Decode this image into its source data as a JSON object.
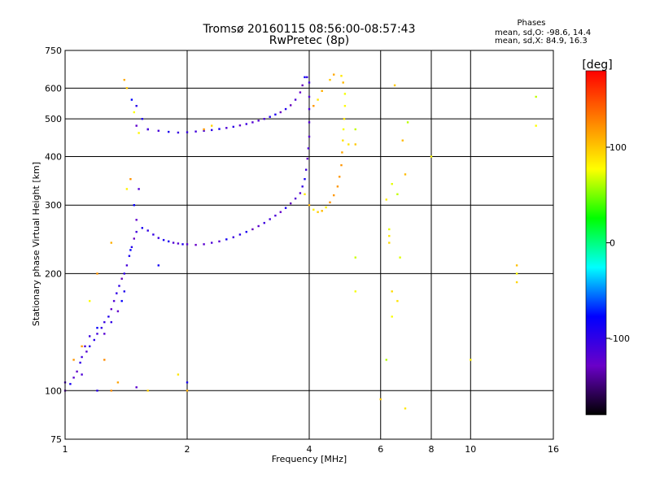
{
  "chart_data": {
    "type": "scatter",
    "title": "Tromsø 20160115 08:56:00-08:57:43",
    "subtitle": "RwPretec (8p)",
    "xlabel": "Frequency [MHz]",
    "ylabel": "Stationary phase Virtual Height [km]",
    "x_scale": "log",
    "y_scale": "log",
    "xlim": [
      1,
      16
    ],
    "ylim": [
      75,
      750
    ],
    "x_ticks": [
      1,
      2,
      4,
      6,
      8,
      10,
      16
    ],
    "y_ticks": [
      75,
      100,
      200,
      300,
      400,
      500,
      600,
      750
    ],
    "grid": true,
    "stats": {
      "heading": "Phases",
      "line_o": "mean, sd,O: -98.6, 14.4",
      "line_x": "mean, sd,X:  84.9, 16.3"
    },
    "colorbar": {
      "label": "[deg]",
      "range": [
        -180,
        180
      ],
      "ticks": [
        100,
        0,
        -100
      ],
      "colors": [
        "#ff0000",
        "#ff8000",
        "#ffff00",
        "#00ff00",
        "#00ffff",
        "#0000ff",
        "#6a00c8",
        "#000000"
      ]
    },
    "series": [
      {
        "points": [
          [
            1.0,
            100
          ],
          [
            1.03,
            104
          ],
          [
            1.05,
            108
          ],
          [
            1.07,
            112
          ],
          [
            1.09,
            118
          ],
          [
            1.1,
            122
          ],
          [
            1.13,
            126
          ],
          [
            1.15,
            130
          ],
          [
            1.18,
            135
          ],
          [
            1.2,
            140
          ],
          [
            1.23,
            145
          ],
          [
            1.25,
            150
          ],
          [
            1.28,
            155
          ],
          [
            1.3,
            162
          ],
          [
            1.32,
            170
          ],
          [
            1.34,
            178
          ],
          [
            1.36,
            186
          ],
          [
            1.38,
            194
          ],
          [
            1.4,
            200
          ],
          [
            1.42,
            210
          ],
          [
            1.44,
            222
          ],
          [
            1.46,
            234
          ],
          [
            1.48,
            246
          ],
          [
            1.5,
            256
          ],
          [
            1.55,
            262
          ],
          [
            1.6,
            258
          ],
          [
            1.65,
            252
          ],
          [
            1.7,
            247
          ],
          [
            1.75,
            244
          ],
          [
            1.8,
            242
          ],
          [
            1.85,
            240
          ],
          [
            1.9,
            239
          ],
          [
            1.95,
            238
          ],
          [
            2.0,
            238
          ],
          [
            2.1,
            237
          ],
          [
            2.2,
            238
          ],
          [
            2.3,
            240
          ],
          [
            2.4,
            242
          ],
          [
            2.5,
            245
          ],
          [
            2.6,
            248
          ],
          [
            2.7,
            252
          ],
          [
            2.8,
            256
          ],
          [
            2.9,
            260
          ],
          [
            3.0,
            265
          ],
          [
            3.1,
            270
          ],
          [
            3.2,
            276
          ],
          [
            3.3,
            282
          ],
          [
            3.4,
            288
          ],
          [
            3.5,
            295
          ],
          [
            3.6,
            303
          ],
          [
            3.7,
            312
          ],
          [
            3.8,
            322
          ],
          [
            3.85,
            335
          ],
          [
            3.9,
            350
          ],
          [
            3.93,
            370
          ],
          [
            3.96,
            395
          ],
          [
            3.98,
            420
          ],
          [
            4.0,
            450
          ],
          [
            4.0,
            490
          ],
          [
            4.0,
            530
          ],
          [
            4.0,
            570
          ],
          [
            4.0,
            620
          ],
          [
            3.95,
            640
          ]
        ]
      },
      {
        "points": [
          [
            1.5,
            480
          ],
          [
            1.6,
            470
          ],
          [
            1.7,
            466
          ],
          [
            1.8,
            463
          ],
          [
            1.9,
            461
          ],
          [
            2.0,
            462
          ],
          [
            2.1,
            464
          ],
          [
            2.2,
            466
          ],
          [
            2.3,
            468
          ],
          [
            2.4,
            471
          ],
          [
            2.5,
            474
          ],
          [
            2.6,
            477
          ],
          [
            2.7,
            481
          ],
          [
            2.8,
            485
          ],
          [
            2.9,
            490
          ],
          [
            3.0,
            495
          ],
          [
            3.1,
            500
          ],
          [
            3.2,
            506
          ],
          [
            3.3,
            513
          ],
          [
            3.4,
            520
          ],
          [
            3.5,
            530
          ],
          [
            3.6,
            542
          ],
          [
            3.7,
            560
          ],
          [
            3.8,
            585
          ],
          [
            3.85,
            610
          ],
          [
            3.9,
            640
          ]
        ]
      },
      {
        "points": [
          [
            3.9,
            320
          ],
          [
            4.0,
            300
          ],
          [
            4.1,
            292
          ],
          [
            4.2,
            288
          ],
          [
            4.3,
            290
          ],
          [
            4.4,
            296
          ],
          [
            4.5,
            305
          ],
          [
            4.6,
            318
          ],
          [
            4.7,
            335
          ],
          [
            4.75,
            355
          ],
          [
            4.8,
            380
          ],
          [
            4.82,
            410
          ],
          [
            4.84,
            440
          ],
          [
            4.86,
            470
          ],
          [
            4.88,
            500
          ],
          [
            4.9,
            540
          ],
          [
            4.9,
            580
          ],
          [
            4.85,
            620
          ],
          [
            4.8,
            645
          ],
          [
            4.6,
            650
          ],
          [
            4.5,
            630
          ],
          [
            4.3,
            590
          ],
          [
            4.2,
            560
          ],
          [
            4.1,
            540
          ]
        ]
      },
      {
        "points": [
          [
            1.12,
            130
          ],
          [
            1.15,
            138
          ],
          [
            1.2,
            145
          ],
          [
            1.25,
            140
          ],
          [
            1.3,
            150
          ],
          [
            1.35,
            160
          ],
          [
            1.38,
            170
          ],
          [
            1.4,
            180
          ],
          [
            1.45,
            230
          ],
          [
            1.5,
            275
          ],
          [
            1.48,
            300
          ],
          [
            1.52,
            330
          ],
          [
            1.46,
            560
          ],
          [
            1.5,
            540
          ],
          [
            1.55,
            500
          ],
          [
            1.6,
            470
          ],
          [
            1.0,
            105
          ],
          [
            1.1,
            110
          ],
          [
            1.2,
            100
          ],
          [
            1.5,
            102
          ],
          [
            1.7,
            210
          ],
          [
            2.0,
            105
          ]
        ]
      },
      {
        "points": [
          [
            1.4,
            630
          ],
          [
            1.42,
            600
          ],
          [
            1.48,
            520
          ],
          [
            1.52,
            460
          ],
          [
            1.45,
            350
          ],
          [
            1.42,
            330
          ],
          [
            1.3,
            240
          ],
          [
            1.2,
            200
          ],
          [
            1.15,
            170
          ],
          [
            1.05,
            120
          ],
          [
            1.1,
            130
          ],
          [
            1.25,
            120
          ],
          [
            1.3,
            100
          ],
          [
            1.35,
            105
          ],
          [
            1.6,
            100
          ],
          [
            1.9,
            110
          ],
          [
            2.0,
            100
          ],
          [
            2.2,
            470
          ],
          [
            2.3,
            480
          ]
        ]
      },
      {
        "points": [
          [
            5.2,
            220
          ],
          [
            5.2,
            180
          ],
          [
            5.2,
            430
          ],
          [
            6.2,
            310
          ],
          [
            6.3,
            260
          ],
          [
            6.3,
            250
          ],
          [
            6.3,
            240
          ],
          [
            6.4,
            340
          ],
          [
            6.4,
            180
          ],
          [
            6.4,
            155
          ],
          [
            6.6,
            320
          ],
          [
            6.7,
            220
          ],
          [
            6.8,
            440
          ],
          [
            6.9,
            360
          ],
          [
            6.9,
            90
          ],
          [
            6.5,
            610
          ],
          [
            6.0,
            95
          ],
          [
            5.2,
            470
          ],
          [
            5.0,
            430
          ],
          [
            6.2,
            120
          ],
          [
            8.0,
            400
          ],
          [
            10.0,
            120
          ],
          [
            13.0,
            190
          ],
          [
            13.0,
            210
          ],
          [
            13.0,
            200
          ],
          [
            14.5,
            570
          ],
          [
            14.5,
            480
          ],
          [
            7.0,
            490
          ],
          [
            6.6,
            170
          ]
        ]
      }
    ],
    "series_phase": [
      -110,
      -110,
      100,
      -100,
      100,
      80
    ],
    "point_phase_noise": 25
  }
}
